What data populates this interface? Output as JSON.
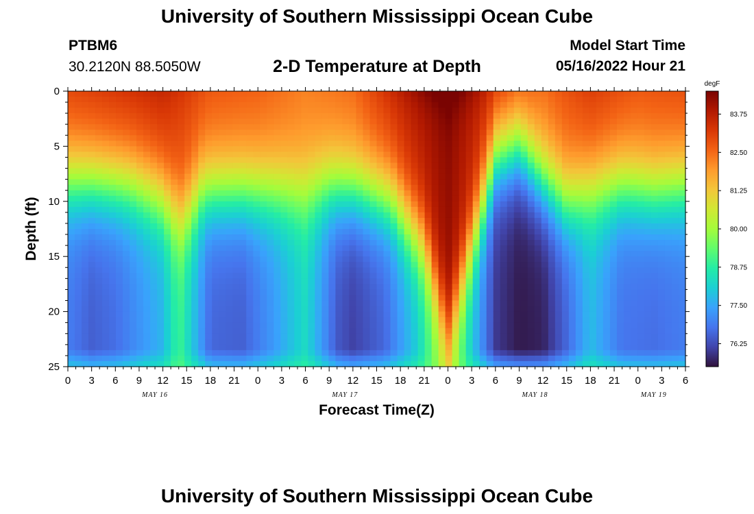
{
  "header": {
    "title": "University of Southern Mississippi Ocean Cube",
    "station_id": "PTBM6",
    "coords": "30.2120N  88.5050W",
    "subtitle": "2-D Temperature at Depth",
    "model_label": "Model Start Time",
    "model_time": "05/16/2022 Hour 21"
  },
  "footer": {
    "title": "University of Southern Mississippi Ocean Cube"
  },
  "chart_data": {
    "type": "heatmap",
    "title": "2-D Temperature at Depth",
    "xlabel": "Forecast Time(Z)",
    "ylabel": "Depth (ft)",
    "units": "degF",
    "x_range_hours": [
      0,
      78
    ],
    "x_ticks": [
      "0",
      "3",
      "6",
      "9",
      "12",
      "15",
      "18",
      "21",
      "0",
      "3",
      "6",
      "9",
      "12",
      "15",
      "18",
      "21",
      "0",
      "3",
      "6",
      "9",
      "12",
      "15",
      "18",
      "21",
      "0",
      "3",
      "6"
    ],
    "date_labels": [
      {
        "label": "MAY 16",
        "hour": 11
      },
      {
        "label": "MAY 17",
        "hour": 35
      },
      {
        "label": "MAY 18",
        "hour": 59
      },
      {
        "label": "MAY 19",
        "hour": 74
      }
    ],
    "y_range_ft": [
      0,
      25
    ],
    "y_ticks": [
      0,
      5,
      10,
      15,
      20,
      25
    ],
    "colorbar": {
      "label": "degF",
      "min": 75.5,
      "max": 84.5,
      "ticks": [
        "83.75",
        "82.50",
        "81.25",
        "80.00",
        "78.75",
        "77.50",
        "76.25"
      ],
      "colors": [
        "#30123b",
        "#4145ab",
        "#4675ed",
        "#39a2fc",
        "#1bcfd4",
        "#24eca6",
        "#61fc6c",
        "#a4fc3b",
        "#d1e834",
        "#f3c63a",
        "#fe9b2d",
        "#f36315",
        "#d93806",
        "#b11901",
        "#7a0402"
      ]
    },
    "thermocline_depth_ft": [
      {
        "hour": 0,
        "depth": 8
      },
      {
        "hour": 8,
        "depth": 8.5
      },
      {
        "hour": 11.5,
        "depth": 9.5
      },
      {
        "hour": 14.5,
        "depth": 11.5
      },
      {
        "hour": 17,
        "depth": 9
      },
      {
        "hour": 21,
        "depth": 9
      },
      {
        "hour": 25,
        "depth": 9
      },
      {
        "hour": 29,
        "depth": 9
      },
      {
        "hour": 33,
        "depth": 8.5
      },
      {
        "hour": 37,
        "depth": 9
      },
      {
        "hour": 41,
        "depth": 10
      },
      {
        "hour": 45,
        "depth": 14
      },
      {
        "hour": 48,
        "depth": 22
      },
      {
        "hour": 51,
        "depth": 14
      },
      {
        "hour": 54,
        "depth": 6
      },
      {
        "hour": 57,
        "depth": 5
      },
      {
        "hour": 60,
        "depth": 8
      },
      {
        "hour": 63,
        "depth": 10
      },
      {
        "hour": 66,
        "depth": 9
      },
      {
        "hour": 70,
        "depth": 8.5
      },
      {
        "hour": 74,
        "depth": 9
      },
      {
        "hour": 78,
        "depth": 8.5
      }
    ],
    "surface_temp_degF": [
      {
        "hour": 0,
        "value": 82.8
      },
      {
        "hour": 6,
        "value": 83.0
      },
      {
        "hour": 12,
        "value": 83.2
      },
      {
        "hour": 18,
        "value": 82.6
      },
      {
        "hour": 24,
        "value": 82.5
      },
      {
        "hour": 30,
        "value": 82.2
      },
      {
        "hour": 36,
        "value": 82.4
      },
      {
        "hour": 42,
        "value": 83.3
      },
      {
        "hour": 48,
        "value": 84.2
      },
      {
        "hour": 54,
        "value": 83.0
      },
      {
        "hour": 60,
        "value": 82.4
      },
      {
        "hour": 66,
        "value": 82.9
      },
      {
        "hour": 72,
        "value": 82.6
      },
      {
        "hour": 78,
        "value": 82.7
      }
    ],
    "deep_min_degF": [
      {
        "hour": 0,
        "value": 76.9
      },
      {
        "hour": 3,
        "value": 76.5
      },
      {
        "hour": 6,
        "value": 76.7
      },
      {
        "hour": 12,
        "value": 77.7
      },
      {
        "hour": 14,
        "value": 79.0
      },
      {
        "hour": 18,
        "value": 76.6
      },
      {
        "hour": 22,
        "value": 76.5
      },
      {
        "hour": 26,
        "value": 77.3
      },
      {
        "hour": 30,
        "value": 78.3
      },
      {
        "hour": 34,
        "value": 76.4
      },
      {
        "hour": 36,
        "value": 76.1
      },
      {
        "hour": 40,
        "value": 76.6
      },
      {
        "hour": 44,
        "value": 78.0
      },
      {
        "hour": 48,
        "value": 80.5
      },
      {
        "hour": 51,
        "value": 78.0
      },
      {
        "hour": 54,
        "value": 76.0
      },
      {
        "hour": 57,
        "value": 75.6
      },
      {
        "hour": 60,
        "value": 75.7
      },
      {
        "hour": 63,
        "value": 76.6
      },
      {
        "hour": 66,
        "value": 77.8
      },
      {
        "hour": 70,
        "value": 76.8
      },
      {
        "hour": 74,
        "value": 76.7
      },
      {
        "hour": 78,
        "value": 76.9
      }
    ]
  }
}
